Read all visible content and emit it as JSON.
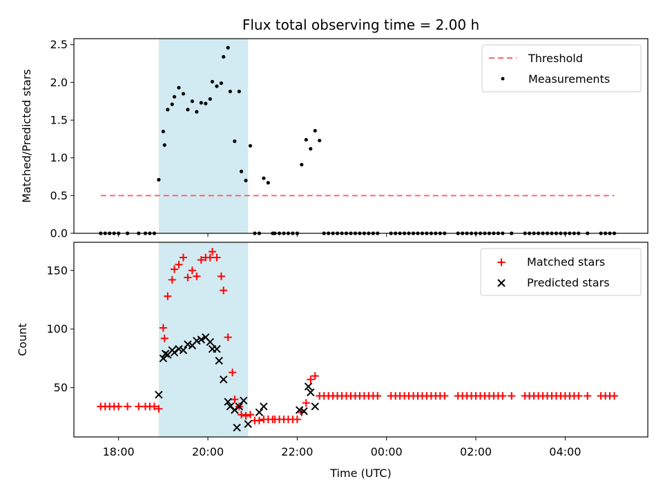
{
  "chart_data": [
    {
      "type": "scatter",
      "title": "Flux total observing time = 2.00 h",
      "ylabel": "Matched/Predicted stars",
      "xlabel": "",
      "xlim": [
        17.0,
        29.85
      ],
      "ylim": [
        0,
        2.58
      ],
      "y_ticks": [
        0.0,
        0.5,
        1.0,
        1.5,
        2.0,
        2.5
      ],
      "y_tick_labels": [
        "0.0",
        "0.5",
        "1.0",
        "1.5",
        "2.0",
        "2.5"
      ],
      "highlight_span": [
        18.9,
        20.9
      ],
      "highlight_color": "#add8e6",
      "legend_position": "upper right",
      "threshold": {
        "name": "Threshold",
        "y": 0.5,
        "x_range": [
          17.6,
          29.1
        ],
        "color": "#ff6666"
      },
      "series": [
        {
          "name": "Measurements",
          "color": "#000000",
          "points": [
            [
              17.6,
              0
            ],
            [
              17.7,
              0
            ],
            [
              17.8,
              0
            ],
            [
              17.9,
              0
            ],
            [
              18.0,
              0
            ],
            [
              18.2,
              0
            ],
            [
              18.45,
              0
            ],
            [
              18.6,
              0
            ],
            [
              18.7,
              0
            ],
            [
              18.8,
              0
            ],
            [
              18.9,
              0.71
            ],
            [
              19.0,
              1.35
            ],
            [
              19.03,
              1.17
            ],
            [
              19.1,
              1.64
            ],
            [
              19.2,
              1.71
            ],
            [
              19.25,
              1.81
            ],
            [
              19.35,
              1.93
            ],
            [
              19.45,
              1.85
            ],
            [
              19.55,
              1.64
            ],
            [
              19.65,
              1.75
            ],
            [
              19.75,
              1.61
            ],
            [
              19.85,
              1.73
            ],
            [
              19.95,
              1.72
            ],
            [
              20.05,
              1.78
            ],
            [
              20.1,
              2.01
            ],
            [
              20.2,
              1.95
            ],
            [
              20.3,
              1.99
            ],
            [
              20.35,
              2.34
            ],
            [
              20.45,
              2.46
            ],
            [
              20.5,
              1.88
            ],
            [
              20.6,
              1.22
            ],
            [
              20.7,
              1.88
            ],
            [
              20.75,
              0.82
            ],
            [
              20.85,
              0.7
            ],
            [
              20.95,
              1.16
            ],
            [
              21.05,
              0
            ],
            [
              21.15,
              0
            ],
            [
              21.25,
              0.73
            ],
            [
              21.35,
              0.67
            ],
            [
              21.45,
              0
            ],
            [
              21.5,
              0
            ],
            [
              21.6,
              0
            ],
            [
              21.7,
              0
            ],
            [
              21.8,
              0
            ],
            [
              21.9,
              0
            ],
            [
              22.0,
              0
            ],
            [
              22.1,
              0.91
            ],
            [
              22.2,
              1.24
            ],
            [
              22.3,
              1.12
            ],
            [
              22.4,
              1.36
            ],
            [
              22.5,
              1.23
            ],
            [
              22.6,
              0
            ],
            [
              22.7,
              0
            ],
            [
              22.8,
              0
            ],
            [
              22.9,
              0
            ],
            [
              23.0,
              0
            ],
            [
              23.1,
              0
            ],
            [
              23.2,
              0
            ],
            [
              23.3,
              0
            ],
            [
              23.4,
              0
            ],
            [
              23.5,
              0
            ],
            [
              23.6,
              0
            ],
            [
              23.7,
              0
            ],
            [
              23.8,
              0
            ],
            [
              24.1,
              0
            ],
            [
              24.2,
              0
            ],
            [
              24.3,
              0
            ],
            [
              24.4,
              0
            ],
            [
              24.5,
              0
            ],
            [
              24.6,
              0
            ],
            [
              24.7,
              0
            ],
            [
              24.8,
              0
            ],
            [
              24.9,
              0
            ],
            [
              25.0,
              0
            ],
            [
              25.1,
              0
            ],
            [
              25.2,
              0
            ],
            [
              25.3,
              0
            ],
            [
              25.6,
              0
            ],
            [
              25.7,
              0
            ],
            [
              25.8,
              0
            ],
            [
              25.9,
              0
            ],
            [
              26.0,
              0
            ],
            [
              26.1,
              0
            ],
            [
              26.2,
              0
            ],
            [
              26.3,
              0
            ],
            [
              26.4,
              0
            ],
            [
              26.5,
              0
            ],
            [
              26.6,
              0
            ],
            [
              26.8,
              0
            ],
            [
              27.1,
              0
            ],
            [
              27.2,
              0
            ],
            [
              27.3,
              0
            ],
            [
              27.4,
              0
            ],
            [
              27.5,
              0
            ],
            [
              27.6,
              0
            ],
            [
              27.7,
              0
            ],
            [
              27.8,
              0
            ],
            [
              27.9,
              0
            ],
            [
              28.0,
              0
            ],
            [
              28.1,
              0
            ],
            [
              28.2,
              0
            ],
            [
              28.3,
              0
            ],
            [
              28.5,
              0
            ],
            [
              28.8,
              0
            ],
            [
              28.9,
              0
            ],
            [
              29.0,
              0
            ],
            [
              29.1,
              0
            ]
          ]
        }
      ]
    },
    {
      "type": "scatter",
      "title": "",
      "ylabel": "Count",
      "xlabel": "Time (UTC)",
      "xlim": [
        17.0,
        29.85
      ],
      "ylim": [
        8,
        174
      ],
      "y_ticks": [
        50,
        100,
        150
      ],
      "y_tick_labels": [
        "50",
        "100",
        "150"
      ],
      "x_ticks": [
        18,
        20,
        22,
        24,
        26,
        28
      ],
      "x_tick_labels": [
        "18:00",
        "20:00",
        "22:00",
        "00:00",
        "02:00",
        "04:00"
      ],
      "highlight_span": [
        18.9,
        20.9
      ],
      "highlight_color": "#add8e6",
      "legend_position": "upper right",
      "series": [
        {
          "name": "Matched stars",
          "marker": "plus",
          "color": "#ff0000",
          "points": [
            [
              17.6,
              34
            ],
            [
              17.7,
              34
            ],
            [
              17.8,
              34
            ],
            [
              17.9,
              34
            ],
            [
              18.0,
              34
            ],
            [
              18.2,
              34
            ],
            [
              18.45,
              34
            ],
            [
              18.6,
              34
            ],
            [
              18.7,
              34
            ],
            [
              18.8,
              34
            ],
            [
              18.9,
              32
            ],
            [
              19.0,
              101
            ],
            [
              19.03,
              92
            ],
            [
              19.1,
              128
            ],
            [
              19.2,
              142
            ],
            [
              19.25,
              151
            ],
            [
              19.35,
              155
            ],
            [
              19.45,
              161
            ],
            [
              19.55,
              144
            ],
            [
              19.65,
              150
            ],
            [
              19.75,
              145
            ],
            [
              19.85,
              159
            ],
            [
              19.95,
              161
            ],
            [
              20.05,
              161
            ],
            [
              20.1,
              166
            ],
            [
              20.2,
              161
            ],
            [
              20.3,
              145
            ],
            [
              20.35,
              133
            ],
            [
              20.45,
              93
            ],
            [
              20.55,
              63
            ],
            [
              20.6,
              40
            ],
            [
              20.7,
              34
            ],
            [
              20.75,
              27
            ],
            [
              20.85,
              26
            ],
            [
              20.95,
              27
            ],
            [
              21.05,
              22
            ],
            [
              21.15,
              22
            ],
            [
              21.25,
              23
            ],
            [
              21.35,
              23
            ],
            [
              21.45,
              23
            ],
            [
              21.5,
              23
            ],
            [
              21.6,
              23
            ],
            [
              21.7,
              23
            ],
            [
              21.8,
              23
            ],
            [
              21.9,
              23
            ],
            [
              22.0,
              23
            ],
            [
              22.1,
              29
            ],
            [
              22.2,
              37
            ],
            [
              22.3,
              57
            ],
            [
              22.4,
              60
            ],
            [
              22.5,
              43
            ],
            [
              22.6,
              43
            ],
            [
              22.7,
              43
            ],
            [
              22.8,
              43
            ],
            [
              22.9,
              43
            ],
            [
              23.0,
              43
            ],
            [
              23.1,
              43
            ],
            [
              23.2,
              43
            ],
            [
              23.3,
              43
            ],
            [
              23.4,
              43
            ],
            [
              23.5,
              43
            ],
            [
              23.6,
              43
            ],
            [
              23.7,
              43
            ],
            [
              23.8,
              43
            ],
            [
              24.1,
              43
            ],
            [
              24.2,
              43
            ],
            [
              24.3,
              43
            ],
            [
              24.4,
              43
            ],
            [
              24.5,
              43
            ],
            [
              24.6,
              43
            ],
            [
              24.7,
              43
            ],
            [
              24.8,
              43
            ],
            [
              24.9,
              43
            ],
            [
              25.0,
              43
            ],
            [
              25.1,
              43
            ],
            [
              25.2,
              43
            ],
            [
              25.3,
              43
            ],
            [
              25.6,
              43
            ],
            [
              25.7,
              43
            ],
            [
              25.8,
              43
            ],
            [
              25.9,
              43
            ],
            [
              26.0,
              43
            ],
            [
              26.1,
              43
            ],
            [
              26.2,
              43
            ],
            [
              26.3,
              43
            ],
            [
              26.4,
              43
            ],
            [
              26.5,
              43
            ],
            [
              26.6,
              43
            ],
            [
              26.8,
              43
            ],
            [
              27.1,
              43
            ],
            [
              27.2,
              43
            ],
            [
              27.3,
              43
            ],
            [
              27.4,
              43
            ],
            [
              27.5,
              43
            ],
            [
              27.6,
              43
            ],
            [
              27.7,
              43
            ],
            [
              27.8,
              43
            ],
            [
              27.9,
              43
            ],
            [
              28.0,
              43
            ],
            [
              28.1,
              43
            ],
            [
              28.2,
              43
            ],
            [
              28.3,
              43
            ],
            [
              28.5,
              43
            ],
            [
              28.8,
              43
            ],
            [
              28.9,
              43
            ],
            [
              29.0,
              43
            ],
            [
              29.1,
              43
            ]
          ]
        },
        {
          "name": "Predicted stars",
          "marker": "x",
          "color": "#000000",
          "points": [
            [
              18.9,
              44
            ],
            [
              19.0,
              75
            ],
            [
              19.05,
              79
            ],
            [
              19.1,
              78
            ],
            [
              19.2,
              82
            ],
            [
              19.25,
              80
            ],
            [
              19.35,
              83
            ],
            [
              19.45,
              82
            ],
            [
              19.55,
              87
            ],
            [
              19.65,
              86
            ],
            [
              19.75,
              90
            ],
            [
              19.85,
              91
            ],
            [
              19.95,
              93
            ],
            [
              20.05,
              89
            ],
            [
              20.1,
              83
            ],
            [
              20.2,
              83
            ],
            [
              20.25,
              73
            ],
            [
              20.35,
              57
            ],
            [
              20.45,
              38
            ],
            [
              20.5,
              34
            ],
            [
              20.6,
              31
            ],
            [
              20.65,
              16
            ],
            [
              20.7,
              34
            ],
            [
              20.8,
              39
            ],
            [
              20.9,
              19
            ],
            [
              21.15,
              29
            ],
            [
              21.25,
              34
            ],
            [
              22.05,
              31
            ],
            [
              22.15,
              30
            ],
            [
              22.25,
              51
            ],
            [
              22.3,
              46
            ],
            [
              22.4,
              34
            ]
          ]
        }
      ]
    }
  ]
}
